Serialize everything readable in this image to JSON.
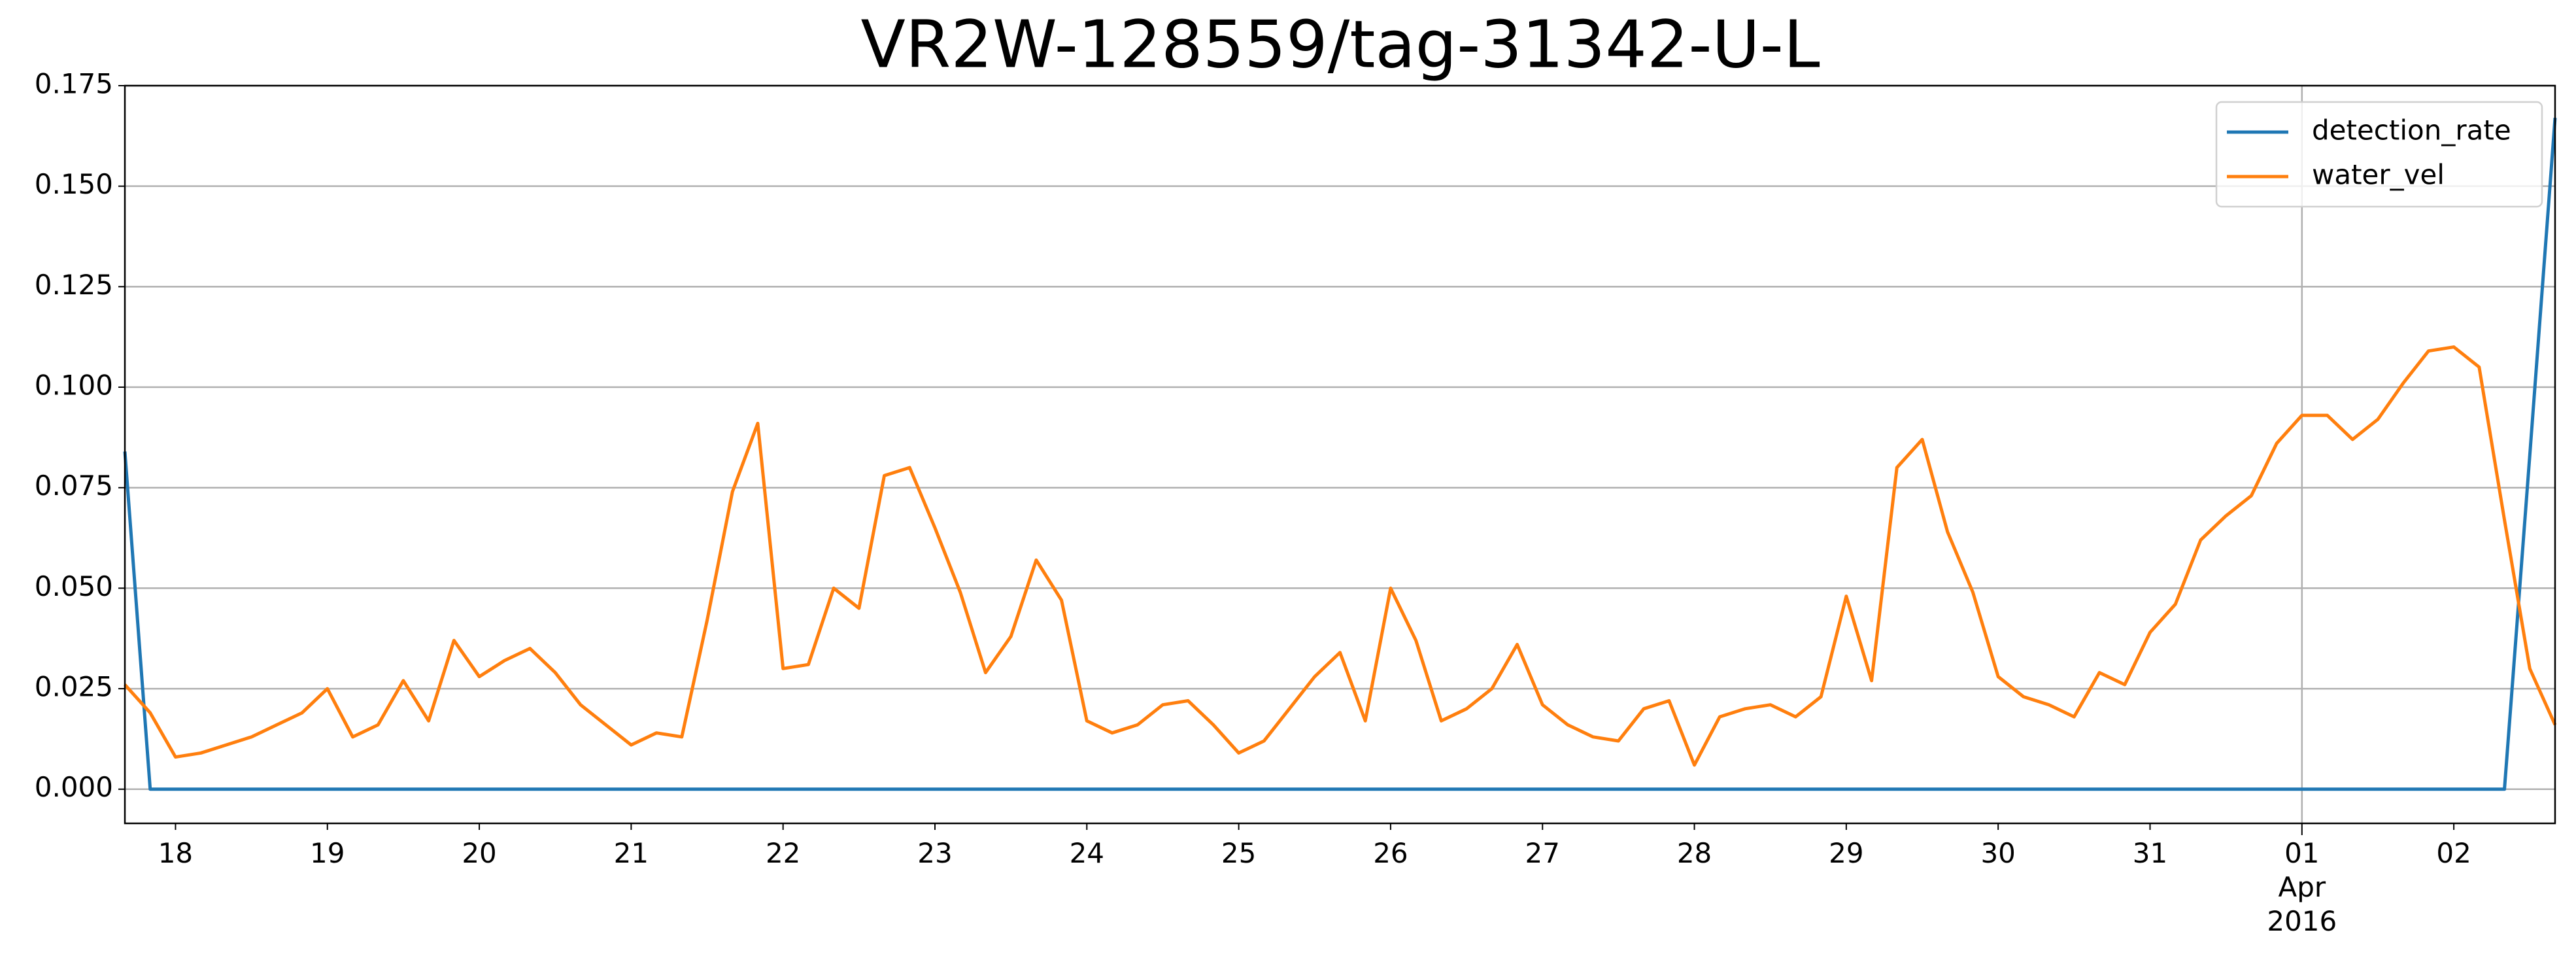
{
  "chart_data": {
    "type": "line",
    "title": "VR2W-128559/tag-31342-U-L",
    "x": [
      "2016-03-17T16:00",
      "2016-03-17T20:00",
      "2016-03-18T00:00",
      "2016-03-18T04:00",
      "2016-03-18T08:00",
      "2016-03-18T12:00",
      "2016-03-18T16:00",
      "2016-03-18T20:00",
      "2016-03-19T00:00",
      "2016-03-19T04:00",
      "2016-03-19T08:00",
      "2016-03-19T12:00",
      "2016-03-19T16:00",
      "2016-03-19T20:00",
      "2016-03-20T00:00",
      "2016-03-20T04:00",
      "2016-03-20T08:00",
      "2016-03-20T12:00",
      "2016-03-20T16:00",
      "2016-03-20T20:00",
      "2016-03-21T00:00",
      "2016-03-21T04:00",
      "2016-03-21T08:00",
      "2016-03-21T12:00",
      "2016-03-21T16:00",
      "2016-03-21T20:00",
      "2016-03-22T00:00",
      "2016-03-22T04:00",
      "2016-03-22T08:00",
      "2016-03-22T12:00",
      "2016-03-22T16:00",
      "2016-03-22T20:00",
      "2016-03-23T00:00",
      "2016-03-23T04:00",
      "2016-03-23T08:00",
      "2016-03-23T12:00",
      "2016-03-23T16:00",
      "2016-03-23T20:00",
      "2016-03-24T00:00",
      "2016-03-24T04:00",
      "2016-03-24T08:00",
      "2016-03-24T12:00",
      "2016-03-24T16:00",
      "2016-03-24T20:00",
      "2016-03-25T00:00",
      "2016-03-25T04:00",
      "2016-03-25T08:00",
      "2016-03-25T12:00",
      "2016-03-25T16:00",
      "2016-03-25T20:00",
      "2016-03-26T00:00",
      "2016-03-26T04:00",
      "2016-03-26T08:00",
      "2016-03-26T12:00",
      "2016-03-26T16:00",
      "2016-03-26T20:00",
      "2016-03-27T00:00",
      "2016-03-27T04:00",
      "2016-03-27T08:00",
      "2016-03-27T12:00",
      "2016-03-27T16:00",
      "2016-03-27T20:00",
      "2016-03-28T00:00",
      "2016-03-28T04:00",
      "2016-03-28T08:00",
      "2016-03-28T12:00",
      "2016-03-28T16:00",
      "2016-03-28T20:00",
      "2016-03-29T00:00",
      "2016-03-29T04:00",
      "2016-03-29T08:00",
      "2016-03-29T12:00",
      "2016-03-29T16:00",
      "2016-03-29T20:00",
      "2016-03-30T00:00",
      "2016-03-30T04:00",
      "2016-03-30T08:00",
      "2016-03-30T12:00",
      "2016-03-30T16:00",
      "2016-03-30T20:00",
      "2016-03-31T00:00",
      "2016-03-31T04:00",
      "2016-03-31T08:00",
      "2016-03-31T12:00",
      "2016-03-31T16:00",
      "2016-03-31T20:00",
      "2016-04-01T00:00",
      "2016-04-01T04:00",
      "2016-04-01T08:00",
      "2016-04-01T12:00",
      "2016-04-01T16:00",
      "2016-04-01T20:00",
      "2016-04-02T00:00",
      "2016-04-02T04:00",
      "2016-04-02T08:00",
      "2016-04-02T12:00",
      "2016-04-02T16:00"
    ],
    "series": [
      {
        "name": "detection_rate",
        "color": "#1f77b4",
        "values": [
          0.084,
          0,
          0,
          0,
          0,
          0,
          0,
          0,
          0,
          0,
          0,
          0,
          0,
          0,
          0,
          0,
          0,
          0,
          0,
          0,
          0,
          0,
          0,
          0,
          0,
          0,
          0,
          0,
          0,
          0,
          0,
          0,
          0,
          0,
          0,
          0,
          0,
          0,
          0,
          0,
          0,
          0,
          0,
          0,
          0,
          0,
          0,
          0,
          0,
          0,
          0,
          0,
          0,
          0,
          0,
          0,
          0,
          0,
          0,
          0,
          0,
          0,
          0,
          0,
          0,
          0,
          0,
          0,
          0,
          0,
          0,
          0,
          0,
          0,
          0,
          0,
          0,
          0,
          0,
          0,
          0,
          0,
          0,
          0,
          0,
          0,
          0,
          0,
          0,
          0,
          0,
          0,
          0,
          0,
          0,
          0.083,
          0.167
        ]
      },
      {
        "name": "water_vel",
        "color": "#ff7f0e",
        "values": [
          0.026,
          0.019,
          0.008,
          0.009,
          0.011,
          0.013,
          0.016,
          0.019,
          0.025,
          0.013,
          0.016,
          0.027,
          0.017,
          0.037,
          0.028,
          0.032,
          0.035,
          0.029,
          0.021,
          0.016,
          0.011,
          0.014,
          0.013,
          0.042,
          0.074,
          0.091,
          0.03,
          0.031,
          0.05,
          0.045,
          0.078,
          0.08,
          0.065,
          0.049,
          0.029,
          0.038,
          0.057,
          0.047,
          0.017,
          0.014,
          0.016,
          0.021,
          0.022,
          0.016,
          0.009,
          0.012,
          0.02,
          0.028,
          0.034,
          0.017,
          0.05,
          0.037,
          0.017,
          0.02,
          0.025,
          0.036,
          0.021,
          0.016,
          0.013,
          0.012,
          0.02,
          0.022,
          0.006,
          0.018,
          0.02,
          0.021,
          0.018,
          0.023,
          0.048,
          0.027,
          0.08,
          0.087,
          0.064,
          0.049,
          0.028,
          0.023,
          0.021,
          0.018,
          0.029,
          0.026,
          0.039,
          0.046,
          0.062,
          0.068,
          0.073,
          0.086,
          0.093,
          0.093,
          0.087,
          0.092,
          0.101,
          0.109,
          0.11,
          0.105,
          0.067,
          0.03,
          0.016
        ]
      }
    ],
    "xlim": [
      "2016-03-17T16:00",
      "2016-04-02T16:00"
    ],
    "xticks": [
      {
        "value": "2016-03-18T00:00",
        "label": "18"
      },
      {
        "value": "2016-03-19T00:00",
        "label": "19"
      },
      {
        "value": "2016-03-20T00:00",
        "label": "20"
      },
      {
        "value": "2016-03-21T00:00",
        "label": "21"
      },
      {
        "value": "2016-03-22T00:00",
        "label": "22"
      },
      {
        "value": "2016-03-23T00:00",
        "label": "23"
      },
      {
        "value": "2016-03-24T00:00",
        "label": "24"
      },
      {
        "value": "2016-03-25T00:00",
        "label": "25"
      },
      {
        "value": "2016-03-26T00:00",
        "label": "26"
      },
      {
        "value": "2016-03-27T00:00",
        "label": "27"
      },
      {
        "value": "2016-03-28T00:00",
        "label": "28"
      },
      {
        "value": "2016-03-29T00:00",
        "label": "29"
      },
      {
        "value": "2016-03-30T00:00",
        "label": "30"
      },
      {
        "value": "2016-03-31T00:00",
        "label": "31"
      },
      {
        "value": "2016-04-01T00:00",
        "label": "01\nApr\n2016"
      },
      {
        "value": "2016-04-02T00:00",
        "label": "02"
      }
    ],
    "x_major_grid": [
      "2016-04-01T00:00"
    ],
    "ylim": [
      -0.0085,
      0.175
    ],
    "yticks": [
      {
        "value": 0,
        "label": "0.000"
      },
      0.025,
      {
        "value": 0.05,
        "label": "0.050"
      },
      0.075,
      {
        "value": 0.1,
        "label": "0.100"
      },
      0.125,
      {
        "value": 0.15,
        "label": "0.150"
      },
      0.175
    ],
    "grid": true,
    "legend": "upper right"
  }
}
